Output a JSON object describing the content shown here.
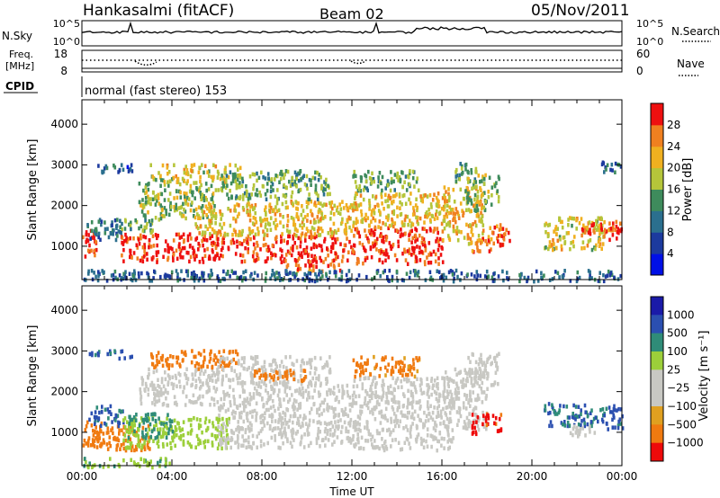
{
  "header": {
    "station": "Hankasalmi (fitACF)",
    "beam": "Beam 02",
    "date": "05/Nov/2011"
  },
  "top_panels": {
    "nsky_label": "N.Sky",
    "nsky_ticks": [
      "10^5",
      "10^0"
    ],
    "nsearch_label": "N.Search",
    "nsearch_ticks": [
      "10^5",
      "10^0"
    ],
    "freq_label": "Freq.",
    "freq_unit": "[MHz]",
    "freq_ticks": [
      "18",
      "8"
    ],
    "nave_label": "Nave",
    "nave_ticks": [
      "60",
      "0"
    ],
    "cpid_label": "CPID",
    "cpid_text": "normal (fast stereo) 153"
  },
  "colors": {
    "ground": "#a09a84",
    "grey": "#c8c8c3",
    "power": [
      "#0010e6",
      "#1c3a9e",
      "#2b6f8e",
      "#3e8b5c",
      "#6aad3f",
      "#b5c53a",
      "#f0b020",
      "#f08020",
      "#f54a10",
      "#ee1010"
    ],
    "velocity": [
      "#1a1aa8",
      "#2b4fb0",
      "#3a74a8",
      "#2f8c78",
      "#3ea04a",
      "#9ccf3a",
      "#c8c8c3",
      "#c8c8c3",
      "#e0a020",
      "#f07a10",
      "#f04a10",
      "#ee0a0a"
    ]
  },
  "chart_data": [
    {
      "type": "heatmap",
      "name": "power-panel",
      "ylabel": "Slant Range [km]",
      "xlabel": "Time UT",
      "xlim": [
        0,
        24
      ],
      "ylim": [
        180,
        4600
      ],
      "x_ticks": [
        "00:00",
        "04:00",
        "08:00",
        "12:00",
        "16:00",
        "20:00",
        "00:00"
      ],
      "y_ticks": [
        1000,
        2000,
        3000,
        4000
      ],
      "colorbar": {
        "label": "Power [dB]",
        "range": [
          0,
          32
        ],
        "ticks": [
          "4",
          "8",
          "12",
          "16",
          "20",
          "24",
          "28"
        ]
      },
      "regions": [
        {
          "t": [
            0.0,
            0.6
          ],
          "r": [
            700,
            1500
          ],
          "v": 30
        },
        {
          "t": [
            0.2,
            1.8
          ],
          "r": [
            1200,
            1700
          ],
          "v": 10
        },
        {
          "t": [
            0.3,
            2.2
          ],
          "r": [
            2850,
            3050
          ],
          "v": 8
        },
        {
          "t": [
            1.7,
            5.0
          ],
          "r": [
            650,
            1350
          ],
          "v": 30
        },
        {
          "t": [
            1.5,
            3.2
          ],
          "r": [
            1350,
            1700
          ],
          "v": 14
        },
        {
          "t": [
            2.5,
            6.0
          ],
          "r": [
            1700,
            2600
          ],
          "v": 17
        },
        {
          "t": [
            3.0,
            7.0
          ],
          "r": [
            2600,
            3050
          ],
          "v": 20
        },
        {
          "t": [
            5.0,
            12.0
          ],
          "r": [
            650,
            1300
          ],
          "v": 30
        },
        {
          "t": [
            5.0,
            12.0
          ],
          "r": [
            1300,
            2150
          ],
          "v": 21
        },
        {
          "t": [
            6.0,
            11.0
          ],
          "r": [
            2200,
            2900
          ],
          "v": 15
        },
        {
          "t": [
            9.0,
            11.5
          ],
          "r": [
            420,
            600
          ],
          "v": 26
        },
        {
          "t": [
            12.0,
            16.0
          ],
          "r": [
            600,
            1500
          ],
          "v": 29
        },
        {
          "t": [
            12.0,
            16.0
          ],
          "r": [
            1500,
            2350
          ],
          "v": 21
        },
        {
          "t": [
            12.0,
            15.0
          ],
          "r": [
            2400,
            2900
          ],
          "v": 15
        },
        {
          "t": [
            16.0,
            17.8
          ],
          "r": [
            1100,
            2500
          ],
          "v": 22
        },
        {
          "t": [
            16.5,
            17.5
          ],
          "r": [
            2600,
            3100
          ],
          "v": 14
        },
        {
          "t": [
            17.0,
            18.5
          ],
          "r": [
            1900,
            2800
          ],
          "v": 17
        },
        {
          "t": [
            17.2,
            18.2
          ],
          "r": [
            900,
            1300
          ],
          "v": 24
        },
        {
          "t": [
            18.0,
            19.0
          ],
          "r": [
            1050,
            1600
          ],
          "v": 27
        },
        {
          "t": [
            20.5,
            23.2
          ],
          "r": [
            950,
            1750
          ],
          "v": 20
        },
        {
          "t": [
            22.0,
            23.5
          ],
          "r": [
            1300,
            1600
          ],
          "v": 28
        },
        {
          "t": [
            23.0,
            24.0
          ],
          "r": [
            2850,
            3150
          ],
          "v": 9
        },
        {
          "t": [
            23.3,
            24.0
          ],
          "r": [
            1150,
            1650
          ],
          "v": 30
        },
        {
          "t": [
            0.0,
            24.0
          ],
          "r": [
            180,
            450
          ],
          "v": 9
        }
      ]
    },
    {
      "type": "heatmap",
      "name": "velocity-panel",
      "ylabel": "Slant Range [km]",
      "xlabel": "Time UT",
      "xlim": [
        0,
        24
      ],
      "ylim": [
        180,
        4600
      ],
      "x_ticks": [
        "00:00",
        "04:00",
        "08:00",
        "12:00",
        "16:00",
        "20:00",
        "00:00"
      ],
      "y_ticks": [
        1000,
        2000,
        3000,
        4000
      ],
      "colorbar": {
        "label": "Velocity [m s⁻¹]",
        "ticks": [
          "1000",
          "500",
          "100",
          "25",
          "−25",
          "−100",
          "−500",
          "−1000"
        ]
      },
      "regions": [
        {
          "t": [
            0.0,
            1.0
          ],
          "r": [
            700,
            1300
          ],
          "v": -350
        },
        {
          "t": [
            0.5,
            3.0
          ],
          "r": [
            600,
            1200
          ],
          "v": -300
        },
        {
          "t": [
            0.2,
            1.8
          ],
          "r": [
            1200,
            1700
          ],
          "v": 600
        },
        {
          "t": [
            0.3,
            2.2
          ],
          "r": [
            2850,
            3050
          ],
          "v": 700
        },
        {
          "t": [
            1.8,
            6.5
          ],
          "r": [
            650,
            1400
          ],
          "v": 60
        },
        {
          "t": [
            2.0,
            4.0
          ],
          "r": [
            900,
            1500
          ],
          "v": 150
        },
        {
          "t": [
            2.5,
            6.0
          ],
          "r": [
            1700,
            2600
          ],
          "v": 5
        },
        {
          "t": [
            3.0,
            7.0
          ],
          "r": [
            2600,
            3050
          ],
          "v": -250
        },
        {
          "t": [
            6.0,
            12.0
          ],
          "r": [
            650,
            2200
          ],
          "v": 0
        },
        {
          "t": [
            6.0,
            11.0
          ],
          "r": [
            2200,
            2900
          ],
          "v": -10
        },
        {
          "t": [
            7.5,
            10.0
          ],
          "r": [
            2300,
            2600
          ],
          "v": -300
        },
        {
          "t": [
            12.0,
            16.5
          ],
          "r": [
            600,
            2400
          ],
          "v": 0
        },
        {
          "t": [
            12.0,
            15.0
          ],
          "r": [
            2400,
            2900
          ],
          "v": -150
        },
        {
          "t": [
            16.0,
            18.0
          ],
          "r": [
            1100,
            2600
          ],
          "v": 0
        },
        {
          "t": [
            17.0,
            18.5
          ],
          "r": [
            2200,
            3000
          ],
          "v": 5
        },
        {
          "t": [
            17.3,
            18.6
          ],
          "r": [
            1000,
            1500
          ],
          "v": -700
        },
        {
          "t": [
            20.5,
            23.3
          ],
          "r": [
            1200,
            1750
          ],
          "v": 550
        },
        {
          "t": [
            21.5,
            23.0
          ],
          "r": [
            950,
            1200
          ],
          "v": 5
        },
        {
          "t": [
            23.3,
            24.0
          ],
          "r": [
            1100,
            1700
          ],
          "v": 700
        },
        {
          "t": [
            0.0,
            4.0
          ],
          "r": [
            180,
            400
          ],
          "v": 80
        }
      ]
    }
  ]
}
